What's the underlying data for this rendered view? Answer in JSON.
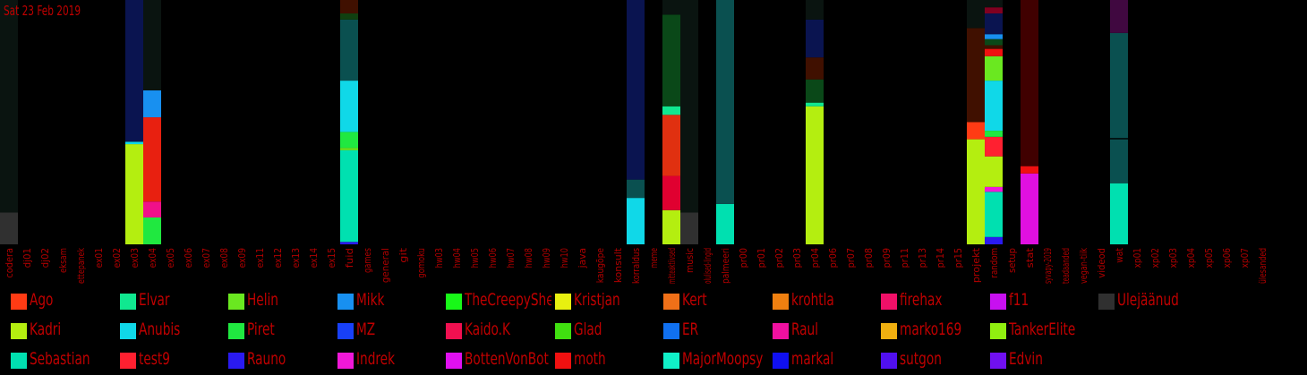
{
  "header": {
    "date": "Sat 23 Feb 2019"
  },
  "chart_data": {
    "type": "bar",
    "stacked": true,
    "ylim": [
      0,
      1
    ],
    "categories": [
      "codera",
      "dj01",
      "dj02",
      "eksam",
      "ettepanek",
      "ex01",
      "ex02",
      "ex03",
      "ex04",
      "ex05",
      "ex06",
      "ex07",
      "ex08",
      "ex09",
      "ex11",
      "ex12",
      "ex13",
      "ex14",
      "ex15",
      "fuid",
      "games",
      "general",
      "git",
      "gomoku",
      "hw03",
      "hw04",
      "hw05",
      "hw06",
      "hw07",
      "hw08",
      "hw09",
      "hw10",
      "java",
      "kaugõpe",
      "konsult",
      "korraldus",
      "meme",
      "mitteaktiivsed",
      "music",
      "olulised-lingid",
      "palmeeri",
      "pr00",
      "pr01",
      "pr02",
      "pr03",
      "pr04",
      "pr06",
      "pr07",
      "pr08",
      "pr09",
      "pr11",
      "pr13",
      "pr14",
      "pr15",
      "projekt",
      "random",
      "setup",
      "stat",
      "syvapy-2019",
      "teadaanded",
      "vegan-tiik",
      "videod",
      "wat",
      "xp01",
      "xp02",
      "xp03",
      "xp04",
      "xp05",
      "xp06",
      "xp07",
      "ülesanded"
    ],
    "legend": [
      {
        "name": "Ago",
        "color": "#ff3b14"
      },
      {
        "name": "Kadri",
        "color": "#b4ee10"
      },
      {
        "name": "Sebastian",
        "color": "#00e0b0"
      },
      {
        "name": "Elvar",
        "color": "#10e890"
      },
      {
        "name": "Anubis",
        "color": "#10d8e8"
      },
      {
        "name": "test9",
        "color": "#ff2030"
      },
      {
        "name": "Helin",
        "color": "#6ae820"
      },
      {
        "name": "Piret",
        "color": "#20e840"
      },
      {
        "name": "Rauno",
        "color": "#2a1af0"
      },
      {
        "name": "Mikk",
        "color": "#1890f0"
      },
      {
        "name": "MZ",
        "color": "#1840f8"
      },
      {
        "name": "Indrek",
        "color": "#f018d8"
      },
      {
        "name": "TheCreepySheep",
        "color": "#18f818"
      },
      {
        "name": "Kaido.K",
        "color": "#f01050"
      },
      {
        "name": "BottenVonBot",
        "color": "#e010f0"
      },
      {
        "name": "Kristjan",
        "color": "#e8f010"
      },
      {
        "name": "Glad",
        "color": "#40e010"
      },
      {
        "name": "moth",
        "color": "#f01010"
      },
      {
        "name": "Kert",
        "color": "#f07018"
      },
      {
        "name": "ER",
        "color": "#1070f0"
      },
      {
        "name": "MajorMoopsy",
        "color": "#10f0c8"
      },
      {
        "name": "krohtla",
        "color": "#f08010"
      },
      {
        "name": "Raul",
        "color": "#f010a0"
      },
      {
        "name": "markal",
        "color": "#1010f0"
      },
      {
        "name": "firehax",
        "color": "#f01068"
      },
      {
        "name": "marko169",
        "color": "#f0b010"
      },
      {
        "name": "sutgon",
        "color": "#5010f0"
      },
      {
        "name": "f11",
        "color": "#c810f0"
      },
      {
        "name": "TankerElite",
        "color": "#90f010"
      },
      {
        "name": "Edvin",
        "color": "#7010f0"
      },
      {
        "name": "Ülejäänud",
        "color": "#303030"
      }
    ],
    "bars": [
      {
        "category": "codera",
        "segments": [
          {
            "value": 0.13,
            "color": "#303030"
          },
          {
            "value": 0.87,
            "color": "#0a1410"
          }
        ]
      },
      {
        "category": "ex03",
        "segments": [
          {
            "value": 0.41,
            "color": "#b4ee10"
          },
          {
            "value": 0.01,
            "color": "#10d8e8"
          },
          {
            "value": 0.58,
            "color": "#0a1450"
          }
        ]
      },
      {
        "category": "ex04",
        "segments": [
          {
            "value": 0.11,
            "color": "#20e840"
          },
          {
            "value": 0.065,
            "color": "#f0108a"
          },
          {
            "value": 0.345,
            "color": "#e82010"
          },
          {
            "value": 0.11,
            "color": "#1890f0"
          },
          {
            "value": 0.37,
            "color": "#0a1410"
          }
        ]
      },
      {
        "category": "fuid",
        "segments": [
          {
            "value": 0.01,
            "color": "#2a1af0"
          },
          {
            "value": 0.375,
            "color": "#00e0b0"
          },
          {
            "value": 0.01,
            "color": "#6ae820"
          },
          {
            "value": 0.065,
            "color": "#20e840"
          },
          {
            "value": 0.21,
            "color": "#10d8e8"
          },
          {
            "value": 0.25,
            "color": "#0a5050"
          },
          {
            "value": 0.025,
            "color": "#104010"
          },
          {
            "value": 0.055,
            "color": "#401000"
          }
        ]
      },
      {
        "category": "korraldus",
        "segments": [
          {
            "value": 0.19,
            "color": "#10d8e8"
          },
          {
            "value": 0.075,
            "color": "#0a5050"
          },
          {
            "value": 0.735,
            "color": "#0a1450"
          }
        ]
      },
      {
        "category": "mitteaktiivsed",
        "segments": [
          {
            "value": 0.14,
            "color": "#b4ee10"
          },
          {
            "value": 0.14,
            "color": "#e00030"
          },
          {
            "value": 0.25,
            "color": "#e03010"
          },
          {
            "value": 0.035,
            "color": "#10e890"
          },
          {
            "value": 0.375,
            "color": "#0a4818"
          },
          {
            "value": 0.06,
            "color": "#0a1410"
          }
        ]
      },
      {
        "category": "music",
        "segments": [
          {
            "value": 0.13,
            "color": "#303030"
          },
          {
            "value": 0.87,
            "color": "#0a1410"
          }
        ]
      },
      {
        "category": "palmeeri",
        "segments": [
          {
            "value": 0.165,
            "color": "#00e0b0"
          },
          {
            "value": 0.835,
            "color": "#0a5050"
          }
        ]
      },
      {
        "category": "pr04",
        "segments": [
          {
            "value": 0.565,
            "color": "#b4ee10"
          },
          {
            "value": 0.015,
            "color": "#10e890"
          },
          {
            "value": 0.095,
            "color": "#0a4818"
          },
          {
            "value": 0.09,
            "color": "#401000"
          },
          {
            "value": 0.155,
            "color": "#0a1450"
          },
          {
            "value": 0.08,
            "color": "#0a1410"
          }
        ]
      },
      {
        "category": "projekt",
        "segments": [
          {
            "value": 0.43,
            "color": "#b4ee10"
          },
          {
            "value": 0.07,
            "color": "#ff3b14"
          },
          {
            "value": 0.385,
            "color": "#401000"
          },
          {
            "value": 0.115,
            "color": "#0a1410"
          }
        ]
      },
      {
        "category": "random",
        "segments": [
          {
            "value": 0.03,
            "color": "#2a1af0"
          },
          {
            "value": 0.185,
            "color": "#00e0b0"
          },
          {
            "value": 0.02,
            "color": "#f018d8"
          },
          {
            "value": 0.125,
            "color": "#b4ee10"
          },
          {
            "value": 0.08,
            "color": "#ff2030"
          },
          {
            "value": 0.025,
            "color": "#20e840"
          },
          {
            "value": 0.205,
            "color": "#10d8e8"
          },
          {
            "value": 0.1,
            "color": "#6ae820"
          },
          {
            "value": 0.03,
            "color": "#f01010"
          },
          {
            "value": 0.015,
            "color": "#401000"
          },
          {
            "value": 0.025,
            "color": "#0a4818"
          },
          {
            "value": 0.02,
            "color": "#1890f0"
          },
          {
            "value": 0.085,
            "color": "#0a1450"
          },
          {
            "value": 0.025,
            "color": "#800020"
          },
          {
            "value": 0.03,
            "color": "#0a1410"
          }
        ]
      },
      {
        "category": "stat",
        "segments": [
          {
            "value": 0.29,
            "color": "#e010e0"
          },
          {
            "value": 0.03,
            "color": "#f01010"
          },
          {
            "value": 0.68,
            "color": "#400000"
          }
        ]
      },
      {
        "category": "wat",
        "segments": [
          {
            "value": 0.25,
            "color": "#00e0b0"
          },
          {
            "value": 0.18,
            "color": "#0a5050"
          },
          {
            "value": 0.005,
            "color": "#000000"
          },
          {
            "value": 0.43,
            "color": "#0a5050"
          },
          {
            "value": 0.135,
            "color": "#400840"
          }
        ]
      }
    ]
  }
}
